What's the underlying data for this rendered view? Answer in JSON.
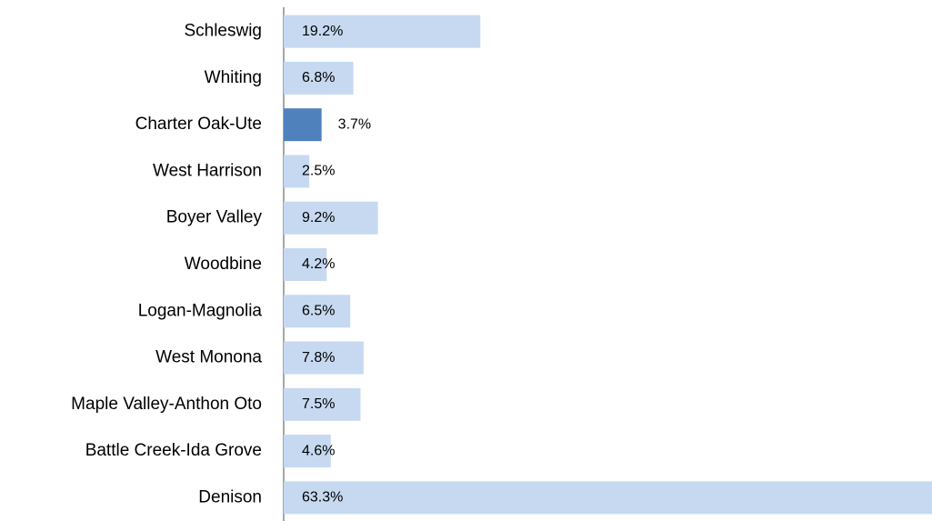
{
  "chart_data": {
    "type": "bar",
    "orientation": "horizontal",
    "categories": [
      "Schleswig",
      "Whiting",
      "Charter Oak-Ute",
      "West Harrison",
      "Boyer Valley",
      "Woodbine",
      "Logan-Magnolia",
      "West Monona",
      "Maple Valley-Anthon Oto",
      "Battle Creek-Ida Grove",
      "Denison"
    ],
    "values": [
      19.2,
      6.8,
      3.7,
      2.5,
      9.2,
      4.2,
      6.5,
      7.8,
      7.5,
      4.6,
      63.3
    ],
    "value_labels": [
      "19.2%",
      "6.8%",
      "3.7%",
      "2.5%",
      "9.2%",
      "4.2%",
      "6.5%",
      "7.8%",
      "7.5%",
      "4.6%",
      "63.3%"
    ],
    "colors": [
      "#c6d9f1",
      "#c6d9f1",
      "#4f81bd",
      "#c6d9f1",
      "#c6d9f1",
      "#c6d9f1",
      "#c6d9f1",
      "#c6d9f1",
      "#c6d9f1",
      "#c6d9f1",
      "#c6d9f1"
    ],
    "xlim": [
      0,
      63.3
    ]
  }
}
